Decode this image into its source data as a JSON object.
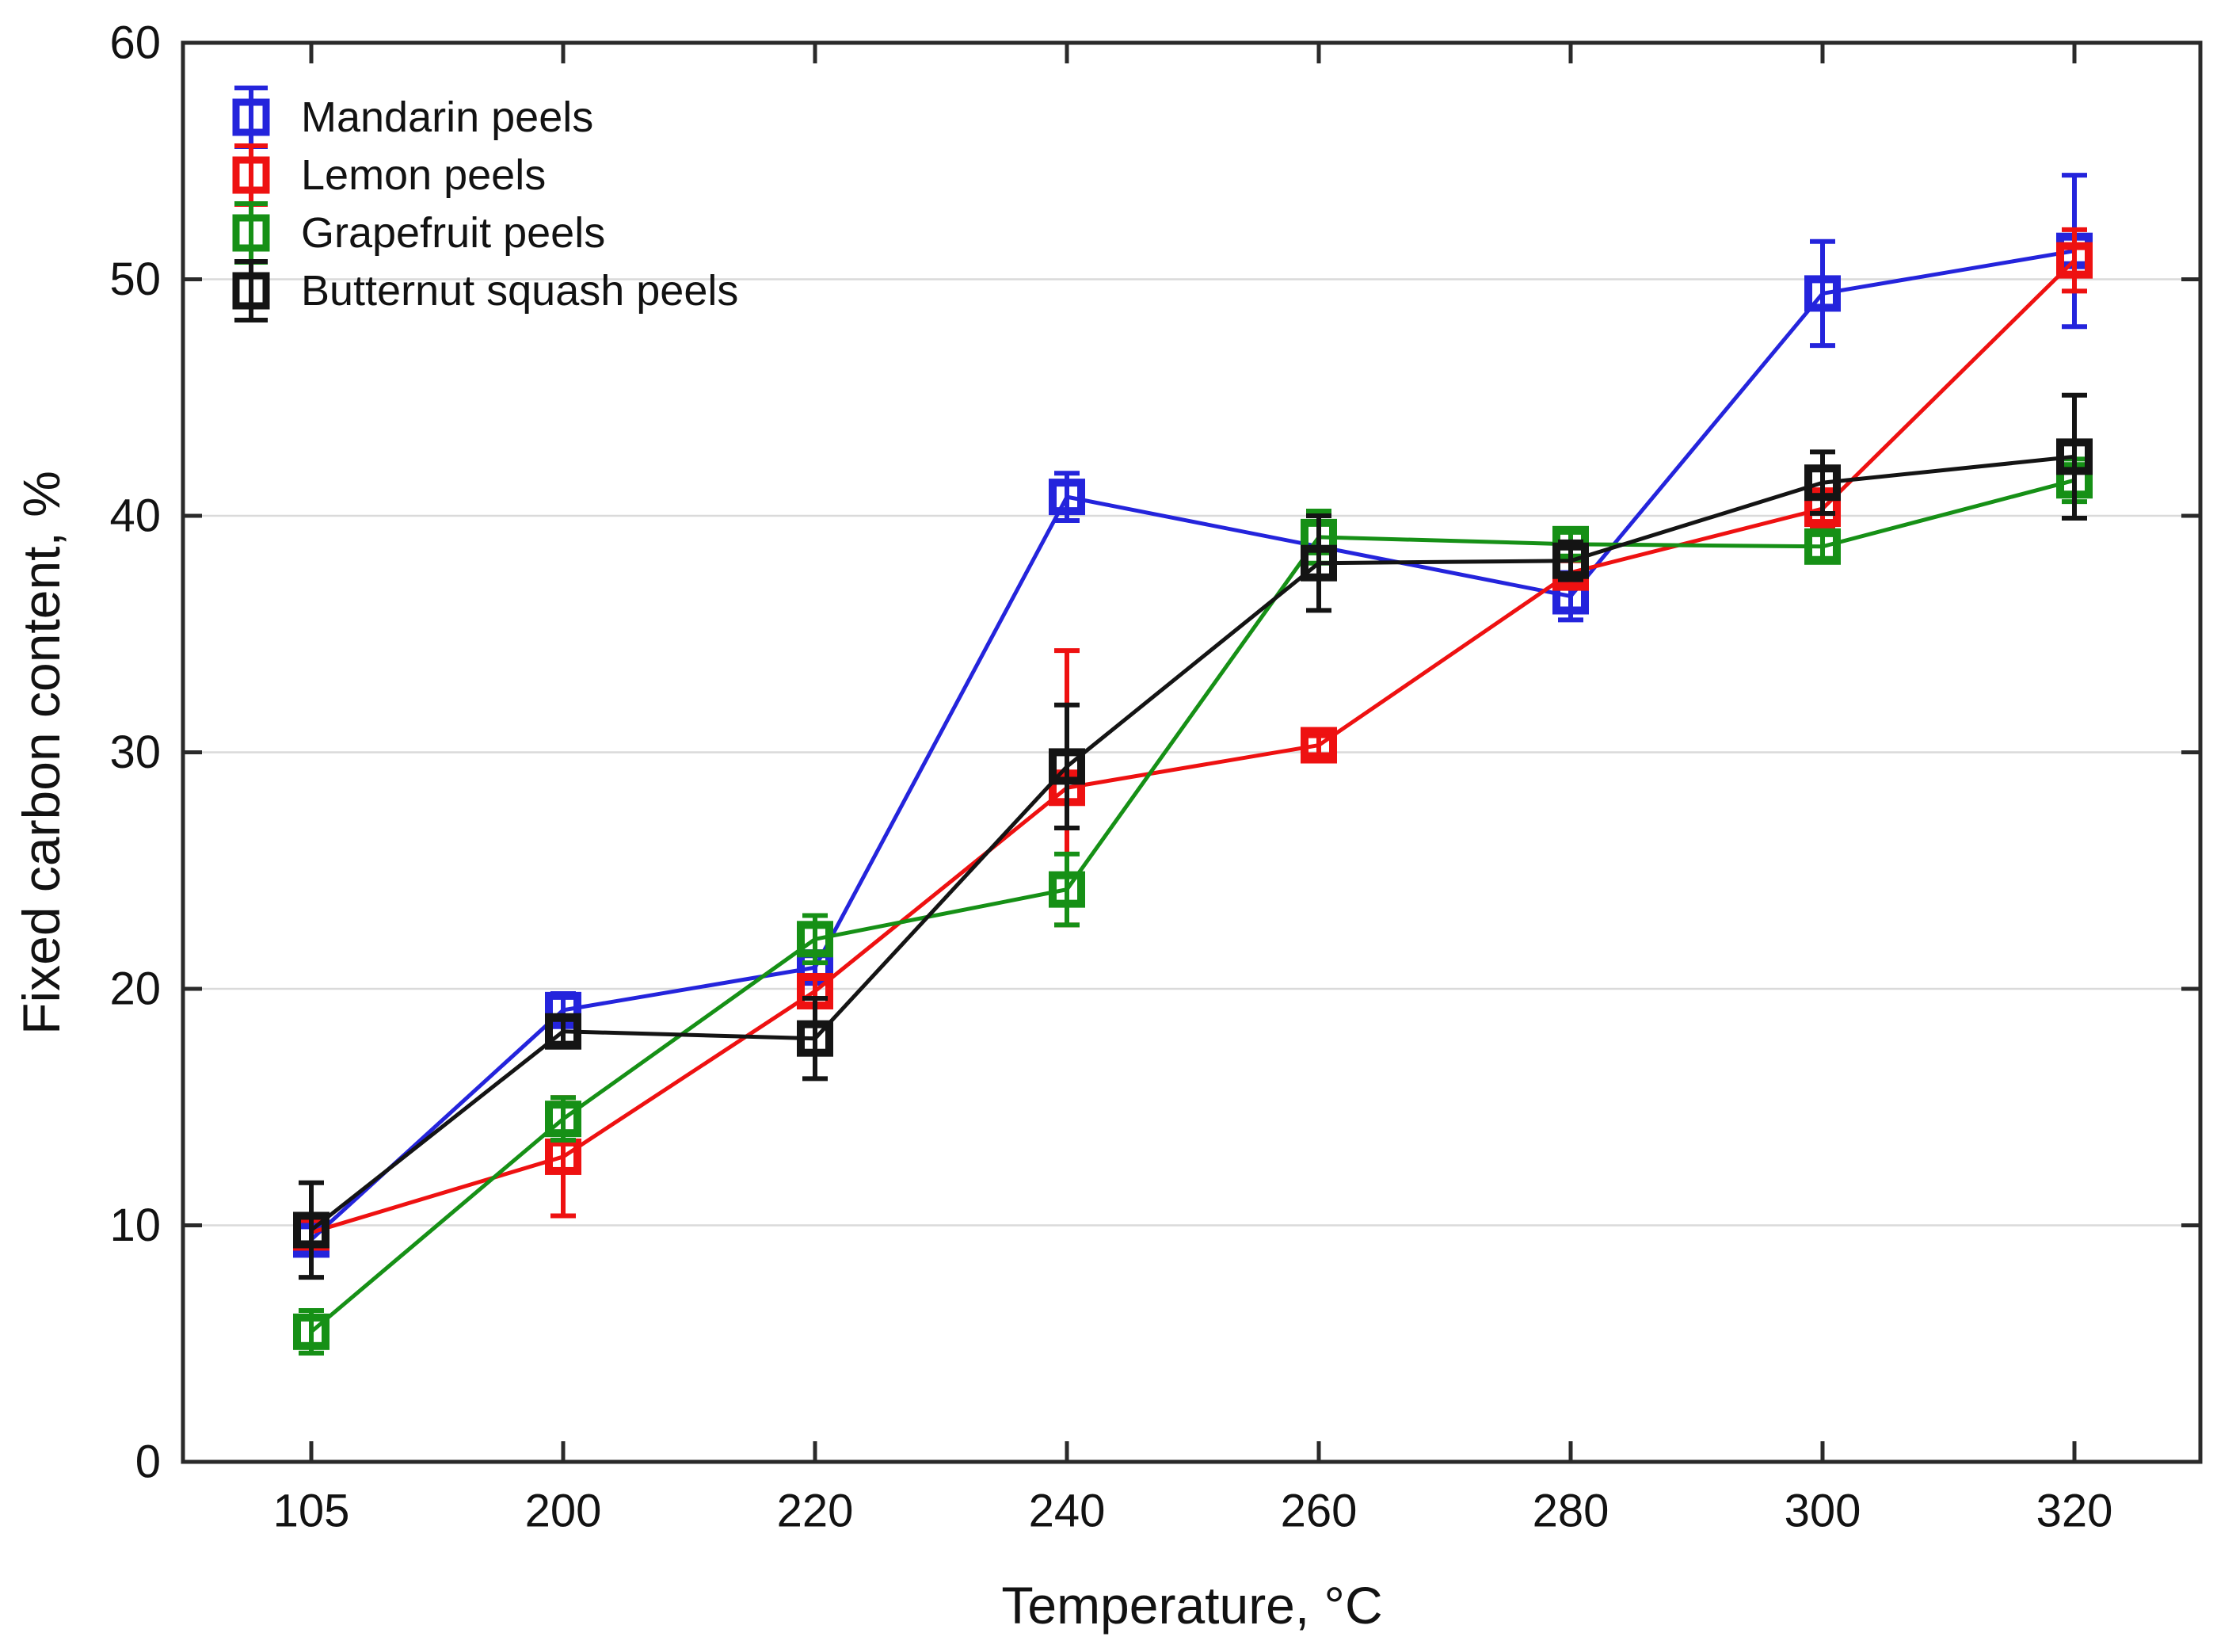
{
  "chart_data": {
    "type": "line",
    "title": "",
    "xlabel": "Temperature, °C",
    "ylabel": "Fixed carbon content, %",
    "categories": [
      "105",
      "200",
      "220",
      "240",
      "260",
      "280",
      "300",
      "320"
    ],
    "y_ticks": [
      "0",
      "10",
      "20",
      "30",
      "40",
      "50",
      "60"
    ],
    "ylim": [
      0,
      60
    ],
    "grid": "horizontal-light-gray",
    "legend_position": "top-left-inside",
    "marker_style": "hollow-square-with-error-bars",
    "colors": {
      "grid": "#dadada",
      "axis": "#2a2a2a",
      "text": "#121212",
      "background": "#ffffff"
    },
    "series": [
      {
        "name": "Mandarin peels",
        "color": "#2424dc",
        "values": [
          9.4,
          19.1,
          20.9,
          40.8,
          null,
          36.6,
          49.4,
          51.2
        ],
        "errors": [
          0.6,
          0.7,
          0.5,
          1.0,
          null,
          1.0,
          2.2,
          3.2
        ]
      },
      {
        "name": "Lemon peels",
        "color": "#ee1111",
        "values": [
          9.7,
          12.9,
          19.9,
          28.5,
          30.3,
          37.6,
          40.3,
          50.8
        ],
        "errors": [
          0.5,
          2.5,
          0.6,
          5.8,
          0.4,
          0.5,
          0.8,
          1.3
        ]
      },
      {
        "name": "Grapefruit peels",
        "color": "#169016",
        "values": [
          5.5,
          14.5,
          22.1,
          24.2,
          39.1,
          38.8,
          38.7,
          41.5
        ],
        "errors": [
          0.9,
          0.9,
          1.0,
          1.5,
          1.1,
          0.5,
          0.5,
          0.9
        ]
      },
      {
        "name": "Butternut squash peels",
        "color": "#141414",
        "values": [
          9.8,
          18.2,
          17.9,
          29.4,
          38.0,
          38.1,
          41.4,
          42.5
        ],
        "errors": [
          2.0,
          0.5,
          1.7,
          2.6,
          2.0,
          0.8,
          1.3,
          2.6
        ]
      }
    ]
  }
}
